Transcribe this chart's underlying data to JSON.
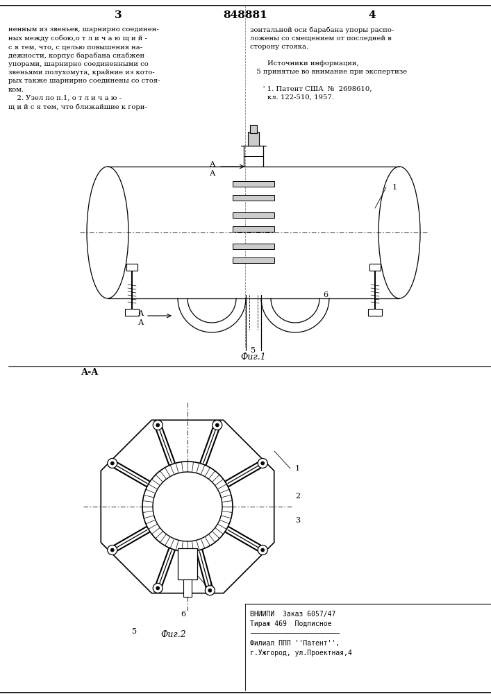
{
  "page_number_left": "3",
  "page_number_center": "848881",
  "page_number_right": "4",
  "text_left": "ненным из звеньев, шарнирно соединен-\nных между собою,о т л и ч а ю щ и й -\nс я тем, что, с целью повышения на-\nдежности, корпус барабана снабжен\nупорами, шарнирно соединенными со\nзвеньями полухомута, крайние из кото-\nрых также шарнирно соединены со стоя-\nком.\n    2. Узел по п.1, о т л и ч а ю -\nщ и й с я тем, что ближайшие к гори-",
  "text_right": "зонтальной оси барабана упоры распо-\nложены со смещением от последней в\nсторону стояка.\n\n        Источники информации,\n   5 принятые во внимание при экспертизе\n\n      ' 1. Патент США  №  2698610,\n        кл. 122-510, 1957.",
  "fig1_label": "Фиг.1",
  "fig2_label": "Фиг.2",
  "section_label": "А-А",
  "bottom_left_text": "ВНИИПИ  Заказ 6057/47\nТираж 469  Подписное\n──────────────────────\nФилиал ППП ''Патент'',\nг.Ужгород, ул.Проектная,4",
  "background_color": "#ffffff",
  "line_color": "#000000",
  "drawing_color": "#1a1a1a"
}
